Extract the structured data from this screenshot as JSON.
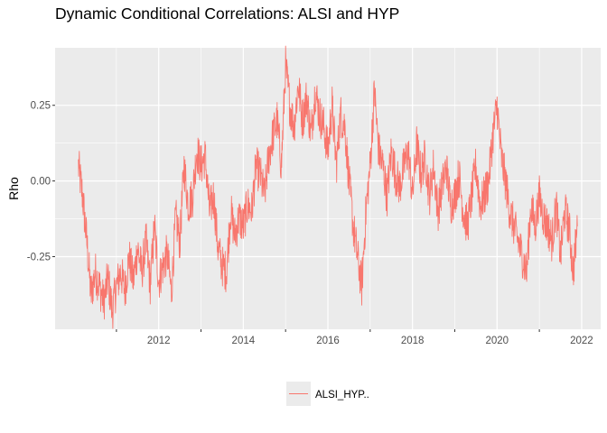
{
  "chart_data": {
    "type": "line",
    "title": "Dynamic Conditional Correlations: ALSI and HYP",
    "xlabel": "",
    "ylabel": "Rho",
    "xlim": [
      2009.55,
      2022.45
    ],
    "ylim": [
      -0.49,
      0.44
    ],
    "x_ticks": [
      2012,
      2014,
      2016,
      2018,
      2020,
      2022
    ],
    "y_ticks": [
      -0.25,
      0.0,
      0.25
    ],
    "y_tick_labels": [
      "-0.25",
      "0.00",
      "0.25"
    ],
    "x_minor_ticks": [
      2011,
      2013,
      2015,
      2017,
      2019,
      2021
    ],
    "grid": true,
    "legend_position": "bottom",
    "series": [
      {
        "name": "ALSI_HYP..",
        "color": "#F8766D",
        "x": [
          2010.1,
          2010.2,
          2010.3,
          2010.4,
          2010.5,
          2010.6,
          2010.7,
          2010.8,
          2010.9,
          2011.0,
          2011.1,
          2011.2,
          2011.3,
          2011.4,
          2011.5,
          2011.6,
          2011.7,
          2011.8,
          2011.9,
          2012.0,
          2012.1,
          2012.2,
          2012.3,
          2012.4,
          2012.5,
          2012.6,
          2012.7,
          2012.8,
          2012.9,
          2013.0,
          2013.1,
          2013.2,
          2013.3,
          2013.4,
          2013.5,
          2013.6,
          2013.7,
          2013.8,
          2013.9,
          2014.0,
          2014.1,
          2014.2,
          2014.3,
          2014.4,
          2014.5,
          2014.6,
          2014.7,
          2014.8,
          2014.9,
          2015.0,
          2015.1,
          2015.2,
          2015.3,
          2015.4,
          2015.5,
          2015.6,
          2015.7,
          2015.8,
          2015.9,
          2016.0,
          2016.1,
          2016.2,
          2016.3,
          2016.4,
          2016.5,
          2016.6,
          2016.7,
          2016.8,
          2016.9,
          2017.0,
          2017.1,
          2017.2,
          2017.3,
          2017.4,
          2017.5,
          2017.6,
          2017.7,
          2017.8,
          2017.9,
          2018.0,
          2018.1,
          2018.2,
          2018.3,
          2018.4,
          2018.5,
          2018.6,
          2018.7,
          2018.8,
          2018.9,
          2019.0,
          2019.1,
          2019.2,
          2019.3,
          2019.4,
          2019.5,
          2019.6,
          2019.7,
          2019.8,
          2019.9,
          2020.0,
          2020.1,
          2020.2,
          2020.3,
          2020.4,
          2020.5,
          2020.6,
          2020.7,
          2020.8,
          2020.9,
          2021.0,
          2021.1,
          2021.2,
          2021.3,
          2021.4,
          2021.5,
          2021.6,
          2021.7,
          2021.8,
          2021.9
        ],
        "values": [
          0.05,
          -0.05,
          -0.2,
          -0.38,
          -0.3,
          -0.35,
          -0.4,
          -0.32,
          -0.43,
          -0.35,
          -0.3,
          -0.36,
          -0.25,
          -0.33,
          -0.22,
          -0.3,
          -0.2,
          -0.34,
          -0.15,
          -0.33,
          -0.28,
          -0.24,
          -0.37,
          -0.12,
          -0.2,
          0.05,
          -0.08,
          -0.05,
          0.1,
          0.05,
          0.08,
          -0.1,
          -0.05,
          -0.22,
          -0.28,
          -0.3,
          -0.1,
          -0.18,
          -0.12,
          -0.15,
          -0.08,
          -0.1,
          0.05,
          0.02,
          -0.05,
          0.08,
          0.15,
          0.2,
          0.05,
          0.38,
          0.25,
          0.18,
          0.32,
          0.2,
          0.28,
          0.15,
          0.3,
          0.22,
          0.18,
          0.1,
          0.25,
          0.05,
          0.22,
          0.18,
          0.0,
          -0.15,
          -0.25,
          -0.35,
          -0.1,
          0.05,
          0.3,
          0.1,
          0.05,
          -0.05,
          0.1,
          0.02,
          -0.02,
          0.05,
          0.1,
          -0.05,
          0.12,
          0.02,
          0.08,
          -0.05,
          0.05,
          -0.1,
          -0.02,
          0.05,
          -0.08,
          -0.05,
          0.02,
          -0.1,
          -0.15,
          -0.05,
          0.05,
          -0.08,
          -0.05,
          0.0,
          0.15,
          0.25,
          0.08,
          0.0,
          -0.1,
          -0.15,
          -0.2,
          -0.25,
          -0.3,
          -0.08,
          -0.15,
          -0.05,
          -0.12,
          -0.15,
          -0.2,
          -0.08,
          -0.25,
          -0.1,
          -0.15,
          -0.3,
          -0.15
        ]
      }
    ]
  }
}
